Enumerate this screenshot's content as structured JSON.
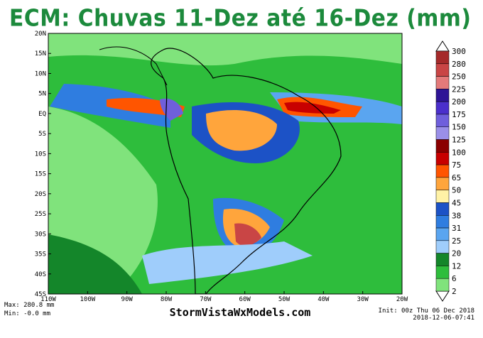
{
  "header": {
    "title": "ECM: Chuvas 11-Dez até 16-Dez (mm)"
  },
  "map": {
    "lat_labels": [
      "20N",
      "15N",
      "10N",
      "5N",
      "EQ",
      "5S",
      "10S",
      "15S",
      "20S",
      "25S",
      "30S",
      "35S",
      "40S",
      "45S"
    ],
    "lon_labels": [
      "110W",
      "100W",
      "90W",
      "80W",
      "70W",
      "60W",
      "50W",
      "40W",
      "30W",
      "20W"
    ]
  },
  "colorbar": {
    "levels": [
      "300",
      "280",
      "250",
      "225",
      "200",
      "175",
      "150",
      "125",
      "100",
      "75",
      "65",
      "50",
      "45",
      "38",
      "31",
      "25",
      "20",
      "12",
      "6",
      "2"
    ],
    "colors": [
      "#a52a2a",
      "#c94545",
      "#e47a7a",
      "#2e1496",
      "#4b2fcc",
      "#6f5fdc",
      "#9a8fe8",
      "#8b0000",
      "#c80000",
      "#ff5500",
      "#ffa53c",
      "#fff2a6",
      "#1c52c6",
      "#2f7de0",
      "#5aa5f0",
      "#9fcdfb",
      "#14862a",
      "#2ebd3c",
      "#80e37c"
    ]
  },
  "footer": {
    "max": "Max: 280.8 mm",
    "min": "Min: -0.0 mm",
    "site": "StormVistaWxModels.com",
    "init": "Init: 00z Thu 06 Dec 2018",
    "stamp": "2018-12-06-07:41"
  }
}
